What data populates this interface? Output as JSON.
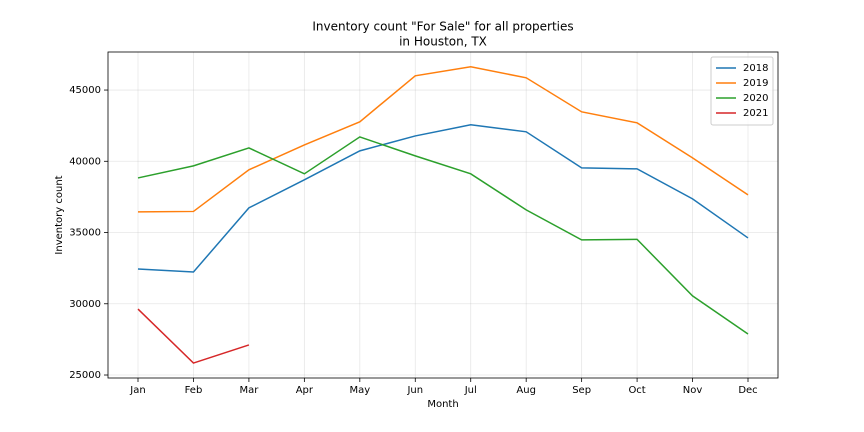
{
  "chart_data": {
    "type": "line",
    "title": [
      "Inventory count \"For Sale\" for all properties",
      "in Houston, TX"
    ],
    "xlabel": "Month",
    "ylabel": "Inventory count",
    "categories": [
      "Jan",
      "Feb",
      "Mar",
      "Apr",
      "May",
      "Jun",
      "Jul",
      "Aug",
      "Sep",
      "Oct",
      "Nov",
      "Dec"
    ],
    "series": [
      {
        "name": "2018",
        "color": "#1f77b4",
        "values": [
          32440,
          32230,
          36730,
          38700,
          40730,
          41780,
          42560,
          42070,
          39540,
          39470,
          37360,
          34620
        ]
      },
      {
        "name": "2019",
        "color": "#ff7f0e",
        "values": [
          36450,
          36480,
          39400,
          41150,
          42770,
          46000,
          46630,
          45860,
          43470,
          42700,
          40240,
          37640
        ]
      },
      {
        "name": "2020",
        "color": "#2ca02c",
        "values": [
          38830,
          39680,
          40940,
          39120,
          41710,
          40380,
          39120,
          36590,
          34480,
          34520,
          30550,
          27880
        ]
      },
      {
        "name": "2021",
        "color": "#d62728",
        "values": [
          29630,
          25840,
          27110,
          null,
          null,
          null,
          null,
          null,
          null,
          null,
          null,
          null
        ]
      }
    ],
    "ylim": [
      24790,
      47670
    ],
    "yticks": [
      25000,
      30000,
      35000,
      40000,
      45000
    ],
    "grid": true,
    "legend": "upper right"
  }
}
